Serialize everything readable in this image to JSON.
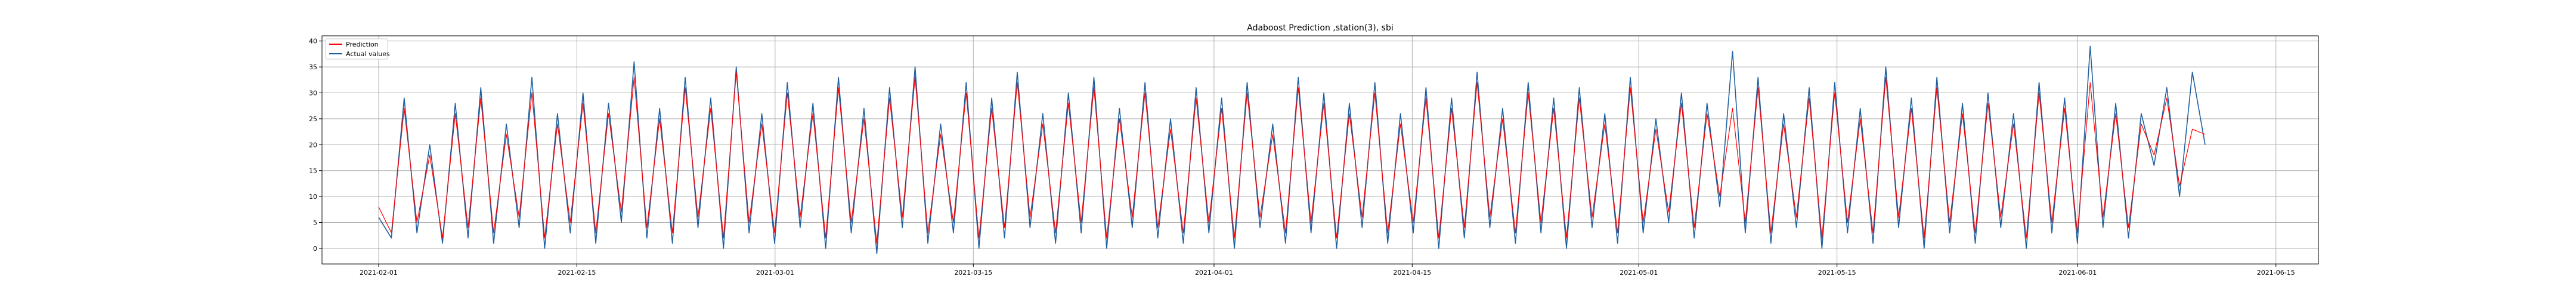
{
  "chart_data": {
    "type": "line",
    "title": "Adaboost Prediction ,station(3), sbi",
    "xlabel": "",
    "ylabel": "",
    "x_start": "2021-01-28",
    "x_end": "2021-06-18",
    "data_start": "2021-02-01",
    "data_end": "2021-06-10",
    "ylim": [
      -3,
      41
    ],
    "y_ticks": [
      "0",
      "5",
      "10",
      "15",
      "20",
      "25",
      "30",
      "35",
      "40"
    ],
    "x_ticks": [
      "2021-02-01",
      "2021-02-15",
      "2021-03-01",
      "2021-03-15",
      "2021-04-01",
      "2021-04-15",
      "2021-05-01",
      "2021-05-15",
      "2021-06-01",
      "2021-06-15"
    ],
    "grid": true,
    "legend_position": "top-left",
    "series": [
      {
        "name": "Prediction",
        "color": "#ff0000",
        "values": [
          8,
          3,
          27,
          5,
          18,
          2,
          26,
          4,
          29,
          3,
          22,
          6,
          30,
          2,
          24,
          5,
          28,
          3,
          26,
          7,
          33,
          4,
          25,
          3,
          31,
          6,
          27,
          2,
          34,
          5,
          24,
          3,
          30,
          6,
          26,
          2,
          31,
          5,
          25,
          1,
          29,
          6,
          33,
          3,
          22,
          5,
          30,
          2,
          27,
          4,
          32,
          6,
          24,
          3,
          28,
          5,
          31,
          2,
          25,
          6,
          30,
          4,
          23,
          3,
          29,
          5,
          27,
          2,
          30,
          6,
          22,
          3,
          31,
          5,
          28,
          2,
          26,
          6,
          30,
          3,
          24,
          5,
          29,
          2,
          27,
          4,
          32,
          6,
          25,
          3,
          30,
          5,
          27,
          2,
          29,
          6,
          24,
          3,
          31,
          5,
          23,
          7,
          28,
          4,
          26,
          10,
          27,
          5,
          31,
          3,
          24,
          6,
          29,
          2,
          30,
          5,
          25,
          3,
          33,
          6,
          27,
          2,
          31,
          5,
          26,
          3,
          28,
          6,
          24,
          2,
          30,
          5,
          27,
          3,
          32,
          6,
          26,
          4,
          24,
          18,
          29,
          12,
          23,
          22
        ]
      },
      {
        "name": "Actual values",
        "color": "#1f5fa0",
        "values": [
          6,
          2,
          29,
          3,
          20,
          1,
          28,
          2,
          31,
          1,
          24,
          4,
          33,
          0,
          26,
          3,
          30,
          1,
          28,
          5,
          36,
          2,
          27,
          1,
          33,
          4,
          29,
          0,
          35,
          3,
          26,
          1,
          32,
          4,
          28,
          0,
          33,
          3,
          27,
          -1,
          31,
          4,
          35,
          1,
          24,
          3,
          32,
          0,
          29,
          2,
          34,
          4,
          26,
          1,
          30,
          3,
          33,
          0,
          27,
          4,
          32,
          2,
          25,
          1,
          31,
          3,
          29,
          0,
          32,
          4,
          24,
          1,
          33,
          3,
          30,
          0,
          28,
          4,
          32,
          1,
          26,
          3,
          31,
          0,
          29,
          2,
          34,
          4,
          27,
          1,
          32,
          3,
          29,
          0,
          31,
          4,
          26,
          1,
          33,
          3,
          25,
          5,
          30,
          2,
          28,
          8,
          38,
          3,
          33,
          1,
          26,
          4,
          31,
          0,
          32,
          3,
          27,
          1,
          35,
          4,
          29,
          0,
          33,
          3,
          28,
          1,
          30,
          4,
          26,
          0,
          32,
          3,
          29,
          1,
          39,
          4,
          28,
          2,
          26,
          16,
          31,
          10,
          34,
          20
        ]
      }
    ]
  }
}
